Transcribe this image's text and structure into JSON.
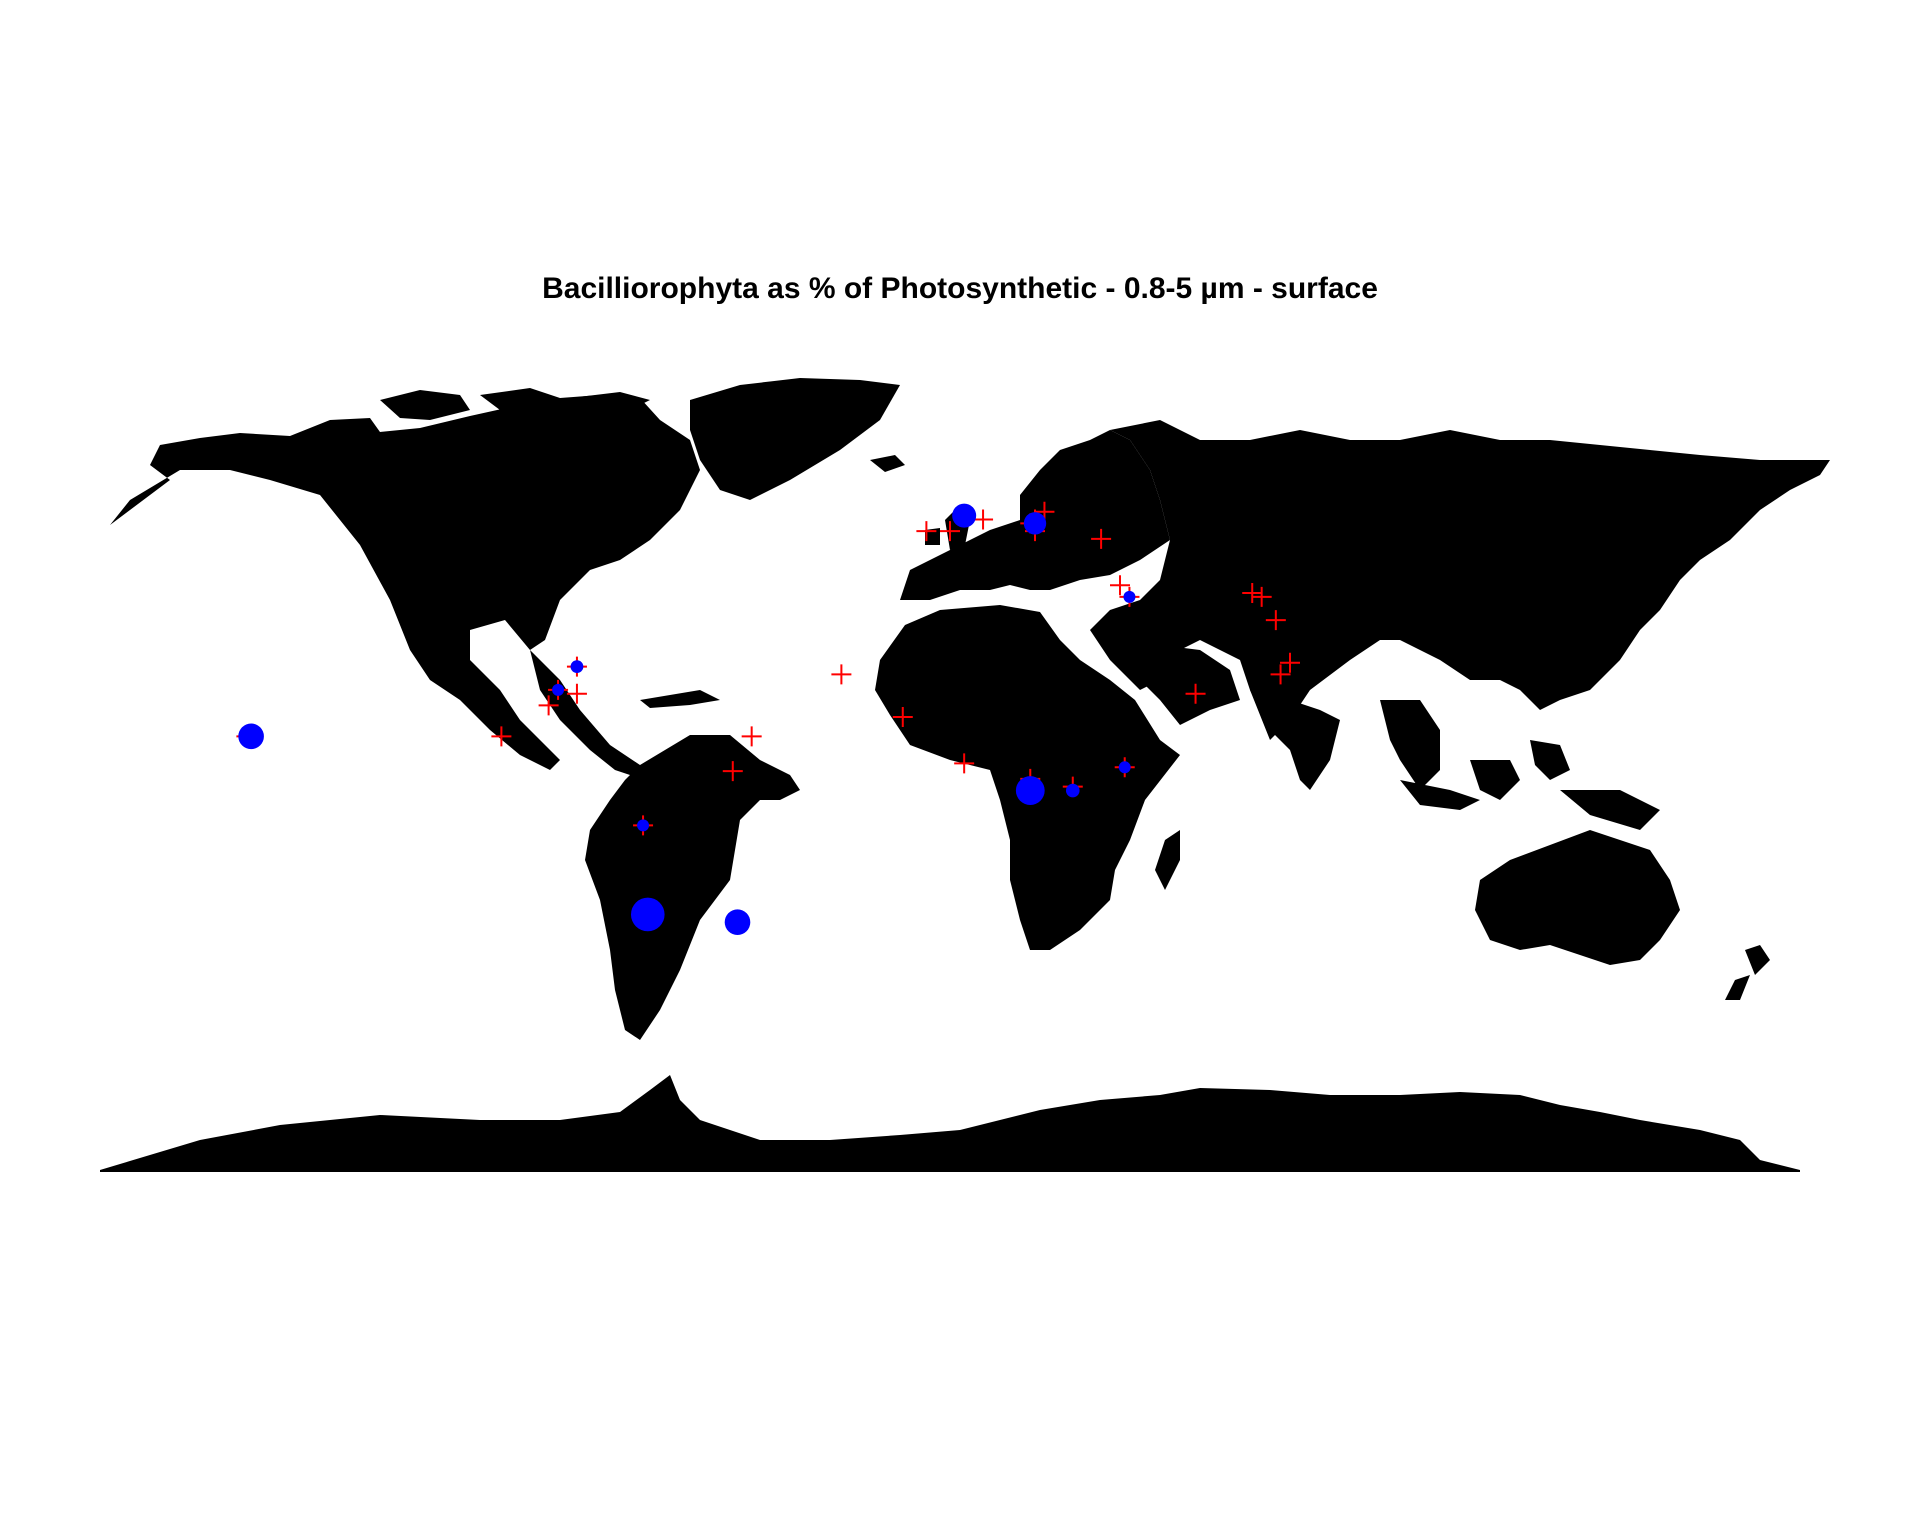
{
  "title": "Bacilliorophyta as % of Photosynthetic - 0.8-5 µm - surface",
  "colors": {
    "land": "#000000",
    "station_marker": "#ff0000",
    "value_dot": "#0000ff",
    "background": "#ffffff"
  },
  "map_data": {
    "projection": "equirectangular",
    "lon_range": [
      -180,
      180
    ],
    "lat_range": [
      -90,
      90
    ],
    "stations": [
      {
        "lon": -148,
        "lat": -17
      },
      {
        "lon": -149,
        "lat": -17
      },
      {
        "lon": -85,
        "lat": -9
      },
      {
        "lon": -83,
        "lat": -5
      },
      {
        "lon": -95,
        "lat": -17
      },
      {
        "lon": -79,
        "lat": 1
      },
      {
        "lon": -79,
        "lat": -6
      },
      {
        "lon": -42,
        "lat": -17
      },
      {
        "lon": -46,
        "lat": -26
      },
      {
        "lon": -23,
        "lat": -1
      },
      {
        "lon": -10,
        "lat": -12
      },
      {
        "lon": -65,
        "lat": -40
      },
      {
        "lon": 3,
        "lat": -24
      },
      {
        "lon": 17,
        "lat": -28
      },
      {
        "lon": 26,
        "lat": -30
      },
      {
        "lon": 37,
        "lat": -25
      },
      {
        "lon": 52,
        "lat": -6
      },
      {
        "lon": -5,
        "lat": 36
      },
      {
        "lon": 0,
        "lat": 36
      },
      {
        "lon": 7,
        "lat": 39
      },
      {
        "lon": 17,
        "lat": 38
      },
      {
        "lon": 18,
        "lat": 39
      },
      {
        "lon": 18,
        "lat": 36
      },
      {
        "lon": 20,
        "lat": 41
      },
      {
        "lon": 32,
        "lat": 34
      },
      {
        "lon": 36,
        "lat": 22
      },
      {
        "lon": 38,
        "lat": 19
      },
      {
        "lon": 64,
        "lat": 20
      },
      {
        "lon": 66,
        "lat": 19
      },
      {
        "lon": 69,
        "lat": 13
      },
      {
        "lon": 72,
        "lat": 2
      },
      {
        "lon": 70,
        "lat": -1
      }
    ],
    "values": [
      {
        "lon": -148,
        "lat": -17,
        "size": 2.2
      },
      {
        "lon": 3,
        "lat": 40,
        "size": 2.0
      },
      {
        "lon": 18,
        "lat": 38,
        "size": 1.8
      },
      {
        "lon": 17,
        "lat": -31,
        "size": 2.6
      },
      {
        "lon": -64,
        "lat": -63,
        "size": 3.2
      },
      {
        "lon": -45,
        "lat": -65,
        "size": 2.2
      },
      {
        "lon": -79,
        "lat": 1,
        "size": 0.6
      },
      {
        "lon": -83,
        "lat": -5,
        "size": 0.5
      },
      {
        "lon": 26,
        "lat": -31,
        "size": 0.7
      },
      {
        "lon": 37,
        "lat": -25,
        "size": 0.5
      },
      {
        "lon": -65,
        "lat": -40,
        "size": 0.5
      },
      {
        "lon": 38,
        "lat": 19,
        "size": 0.5
      }
    ]
  }
}
